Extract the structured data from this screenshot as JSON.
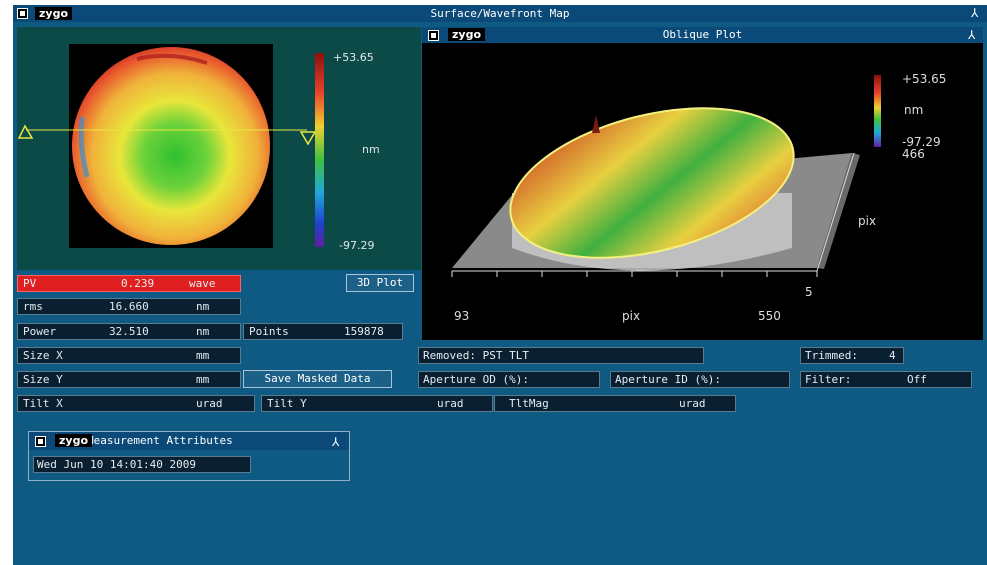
{
  "window": {
    "title": "Surface/Wavefront Map",
    "logo": "zygo"
  },
  "surface_map": {
    "scale_max": "+53.65",
    "scale_min": "-97.29",
    "unit": "nm"
  },
  "oblique": {
    "title": "Oblique Plot",
    "logo": "zygo",
    "scale_max": "+53.65",
    "scale_min": "-97.29",
    "unit": "nm",
    "y_max": "466",
    "y_label": "pix",
    "y_min": "5",
    "x_min": "93",
    "x_label": "pix",
    "x_max": "550"
  },
  "results": {
    "pv": {
      "label": "PV",
      "value": "0.239",
      "unit": "wave"
    },
    "rms": {
      "label": "rms",
      "value": "16.660",
      "unit": "nm"
    },
    "power": {
      "label": "Power",
      "value": "32.510",
      "unit": "nm"
    },
    "points": {
      "label": "Points",
      "value": "159878"
    },
    "size_x": {
      "label": "Size X",
      "value": "",
      "unit": "mm"
    },
    "size_y": {
      "label": "Size Y",
      "value": "",
      "unit": "mm"
    },
    "tilt_x": {
      "label": "Tilt X",
      "value": "",
      "unit": "urad"
    },
    "tilt_y": {
      "label": "Tilt Y",
      "value": "",
      "unit": "urad"
    },
    "tltmag": {
      "label": "TltMag",
      "value": "",
      "unit": "urad"
    },
    "removed": "Removed: PST TLT",
    "trimmed": {
      "label": "Trimmed:",
      "value": "4"
    },
    "aperture_od": "Aperture OD (%):",
    "aperture_id": "Aperture ID (%):",
    "filter": {
      "label": "Filter:",
      "value": "Off"
    }
  },
  "buttons": {
    "plot3d": "3D Plot",
    "save_masked": "Save Masked Data"
  },
  "attributes": {
    "title": "Measurement Attributes",
    "logo": "zygo",
    "date": "Wed Jun 10 14:01:40 2009"
  }
}
